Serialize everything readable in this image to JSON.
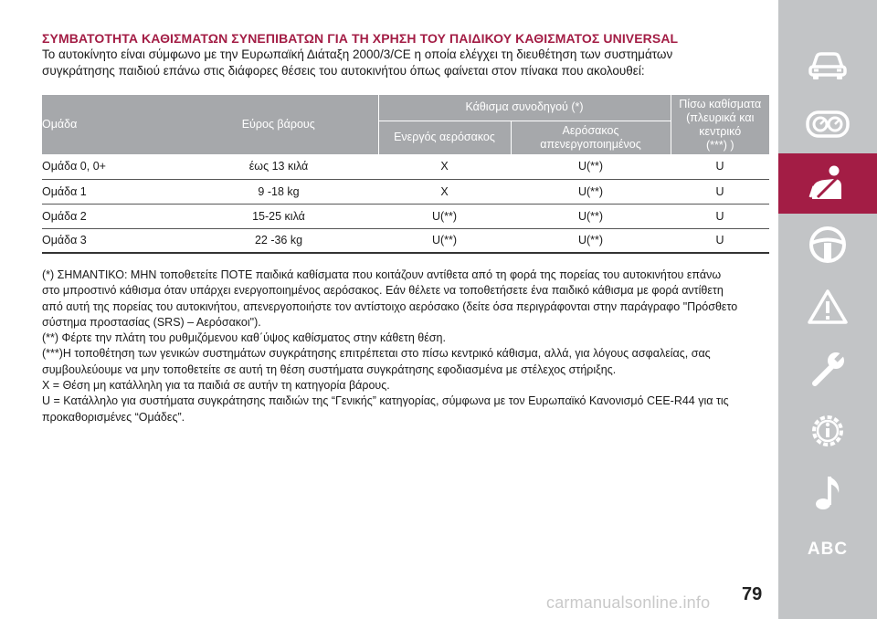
{
  "title": "ΣΥΜΒΑΤΟΤΗΤΑ ΚΑΘΙΣΜΑΤΩΝ ΣΥΝΕΠΙΒΑΤΩΝ ΓΙΑ ΤΗ ΧΡΗΣΗ ΤΟΥ ΠΑΙΔΙΚΟΥ ΚΑΘΙΣΜΑΤΟΣ UNIVERSAL",
  "intro": [
    "Το αυτοκίνητο είναι σύμφωνο με την Ευρωπαϊκή Διάταξη 2000/3/CE η οποία ελέγχει τη διευθέτηση των συστημάτων",
    "συγκράτησης παιδιού επάνω στις διάφορες θέσεις του αυτοκινήτου όπως φαίνεται στον πίνακα που ακολουθεί:"
  ],
  "table": {
    "headers": {
      "group": "Ομάδα",
      "weight": "Εύρος βάρους",
      "passenger": "Κάθισμα συνοδηγού (*)",
      "airbag_on": "Ενεργός αερόσακος",
      "airbag_off": [
        "Αερόσακος",
        "απενεργοποιημένος"
      ],
      "rear": [
        "Πίσω καθίσματα",
        "(πλευρικά και κεντρικό",
        "(***) )"
      ]
    },
    "rows": [
      {
        "group": "Ομάδα 0, 0+",
        "weight": "έως 13 κιλά",
        "airbag_on": "X",
        "airbag_off": "U(**)",
        "rear": "U"
      },
      {
        "group": "Ομάδα 1",
        "weight": "9 -18 kg",
        "airbag_on": "X",
        "airbag_off": "U(**)",
        "rear": "U"
      },
      {
        "group": "Ομάδα 2",
        "weight": "15-25 κιλά",
        "airbag_on": "U(**)",
        "airbag_off": "U(**)",
        "rear": "U"
      },
      {
        "group": "Ομάδα 3",
        "weight": "22 -36 kg",
        "airbag_on": "U(**)",
        "airbag_off": "U(**)",
        "rear": "U"
      }
    ]
  },
  "notes": [
    "(*) ΣΗΜΑΝΤΙΚΟ: ΜΗΝ τοποθετείτε ΠΟΤΕ παιδικά καθίσματα που κοιτάζουν αντίθετα από τη φορά της πορείας του αυτοκινήτου επάνω",
    "στο μπροστινό κάθισμα όταν υπάρχει ενεργοποιημένος αερόσακος. Εάν θέλετε να τοποθετήσετε ένα παιδικό κάθισμα με φορά αντίθετη",
    "από αυτή της πορείας του αυτοκινήτου, απενεργοποιήστε τον αντίστοιχο αερόσακο (δείτε όσα περιγράφονται στην παράγραφο \"Πρόσθετο",
    "σύστημα προστασίας (SRS) – Αερόσακοι\").",
    "(**) Φέρτε την πλάτη του ρυθμιζόμενου καθ΄ύψος καθίσματος στην κάθετη θέση.",
    "(***)Η τοποθέτηση των γενικών συστημάτων συγκράτησης επιτρέπεται στο πίσω κεντρικό κάθισμα, αλλά, για λόγους ασφαλείας, σας",
    "συμβουλεύουμε να μην τοποθετείτε σε αυτή τη θέση συστήματα συγκράτησης εφοδιασμένα με στέλεχος στήριξης.",
    "X = Θέση μη κατάλληλη για τα παιδιά σε αυτήν τη κατηγορία βάρους.",
    "U = Κατάλληλο για συστήματα συγκράτησης παιδιών της “Γενικής” κατηγορίας, σύμφωνα με τον Ευρωπαϊκό Κανονισμό CEE-R44 για τις",
    "προκαθορισμένες “Ομάδες”."
  ],
  "page_number": "79",
  "watermark": "carmanualsonline.info",
  "sidebar": {
    "active_color": "#a31d45",
    "items": [
      "car-icon",
      "dashboard-gauges-icon",
      "seatbelt-person-icon",
      "steering-wheel-icon",
      "warning-triangle-icon",
      "wrench-icon",
      "info-gear-icon",
      "music-note-icon"
    ],
    "abc_label": "ABC"
  }
}
